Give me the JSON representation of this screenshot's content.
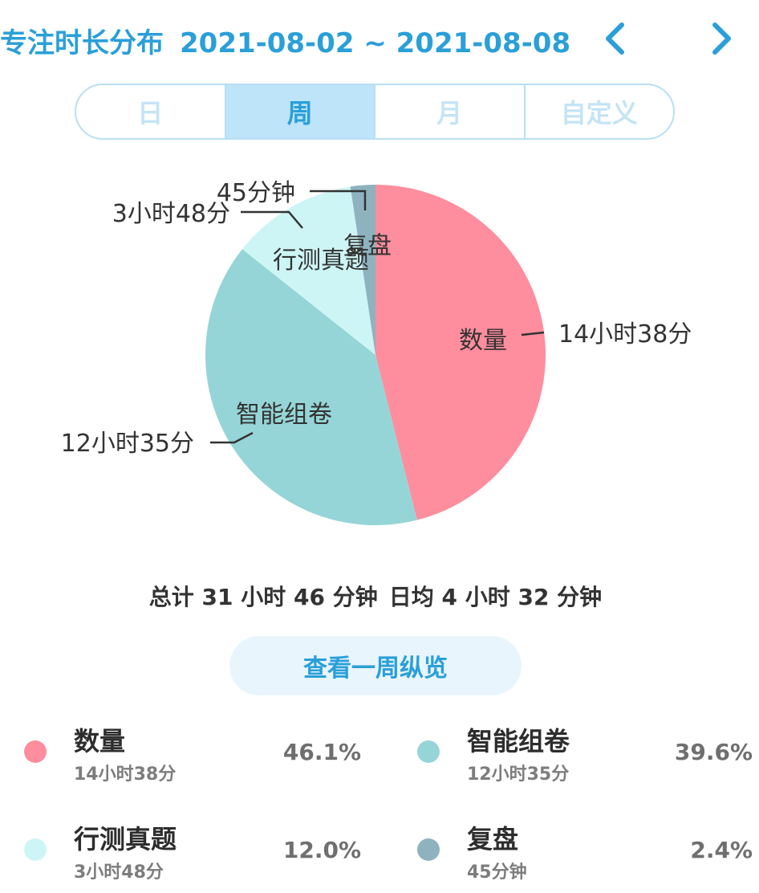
{
  "header": {
    "title": "专注时长分布",
    "date_range": "2021-08-02 ~ 2021-08-08",
    "prev_icon": "chevron-left-icon",
    "next_icon": "chevron-right-icon",
    "accent_color": "#2a9fd8"
  },
  "tabs": [
    {
      "label": "日",
      "active": false
    },
    {
      "label": "周",
      "active": true
    },
    {
      "label": "月",
      "active": false
    },
    {
      "label": "自定义",
      "active": false
    }
  ],
  "summary": {
    "total": "总计 31 小时 46 分钟",
    "daily_avg": "日均 4 小时 32 分钟"
  },
  "overview_button": "查看一周纵览",
  "chart_data": {
    "type": "pie",
    "title": "",
    "unit": "minutes",
    "series": [
      {
        "name": "数量",
        "value": 878,
        "duration_label": "14小时38分",
        "percent": "46.1%",
        "color": "#fe8d9e"
      },
      {
        "name": "智能组卷",
        "value": 755,
        "duration_label": "12小时35分",
        "percent": "39.6%",
        "color": "#96d5d7"
      },
      {
        "name": "行测真题",
        "value": 228,
        "duration_label": "3小时48分",
        "percent": "12.0%",
        "color": "#cef5f5"
      },
      {
        "name": "复盘",
        "value": 45,
        "duration_label": "45分钟",
        "percent": "2.4%",
        "color": "#8eb3bf"
      }
    ]
  }
}
